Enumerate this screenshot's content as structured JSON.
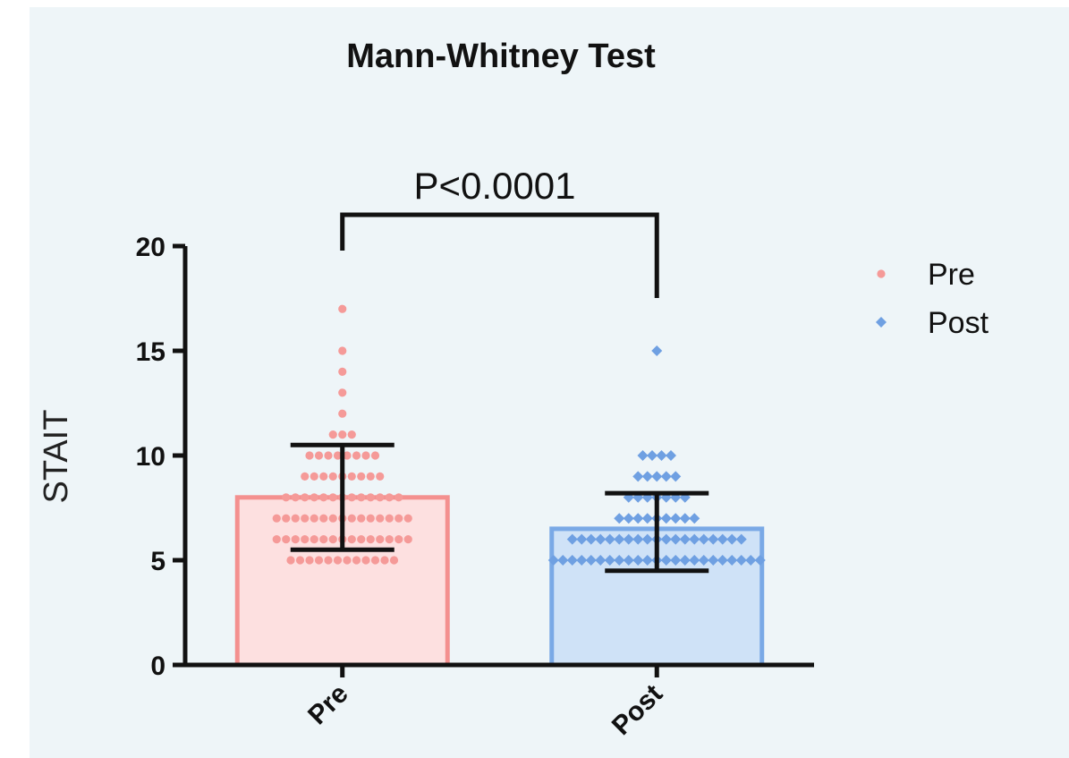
{
  "chart_data": {
    "type": "bar",
    "title": "Mann-Whitney Test",
    "ylabel": "STAIT",
    "xlabel": "",
    "ylim": [
      0,
      20
    ],
    "yticks": [
      0,
      5,
      10,
      15,
      20
    ],
    "categories": [
      "Pre",
      "Post"
    ],
    "significance": {
      "label": "P<0.0001",
      "between": [
        "Pre",
        "Post"
      ]
    },
    "legend": {
      "position": "right",
      "entries": [
        "Pre",
        "Post"
      ]
    },
    "grid": false,
    "series": [
      {
        "name": "Pre",
        "marker": "circle",
        "fill": "#fde0e0",
        "edge": "#f4908f",
        "point_color": "#f59a98",
        "mean": 8.0,
        "error_low": 5.5,
        "error_high": 10.5,
        "points": [
          {
            "y": 17,
            "n": 1
          },
          {
            "y": 15,
            "n": 1
          },
          {
            "y": 14,
            "n": 1
          },
          {
            "y": 13,
            "n": 1
          },
          {
            "y": 12,
            "n": 1
          },
          {
            "y": 11,
            "n": 3
          },
          {
            "y": 10,
            "n": 8
          },
          {
            "y": 9,
            "n": 9
          },
          {
            "y": 8,
            "n": 13
          },
          {
            "y": 7,
            "n": 15
          },
          {
            "y": 6,
            "n": 15
          },
          {
            "y": 5,
            "n": 12
          }
        ]
      },
      {
        "name": "Post",
        "marker": "diamond",
        "fill": "#cfe2f7",
        "edge": "#7aa9e6",
        "point_color": "#6fa0e2",
        "mean": 6.5,
        "error_low": 4.5,
        "error_high": 8.2,
        "points": [
          {
            "y": 15,
            "n": 1
          },
          {
            "y": 10,
            "n": 4
          },
          {
            "y": 9,
            "n": 5
          },
          {
            "y": 8,
            "n": 7
          },
          {
            "y": 7,
            "n": 9
          },
          {
            "y": 6,
            "n": 19
          },
          {
            "y": 5,
            "n": 23
          }
        ]
      }
    ]
  }
}
